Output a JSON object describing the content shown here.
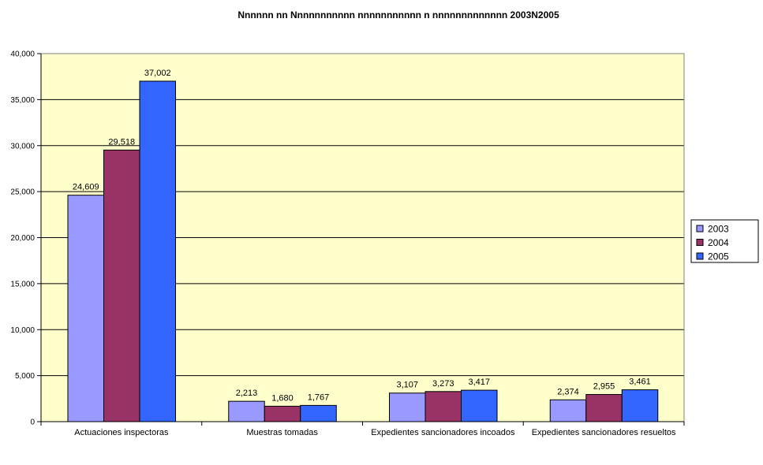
{
  "chart_data": {
    "type": "bar",
    "title": "Nnnnnn nn Nnnnnnnnnnn nnnnnnnnnnn n nnnnnnnnnnnnn 2003N2005",
    "xlabel": "",
    "ylabel": "",
    "categories": [
      "Actuaciones inspectoras",
      "Muestras tomadas",
      "Expedientes sancionadores incoados",
      "Expedientes sancionadores resueltos"
    ],
    "series": [
      {
        "name": "2003",
        "color": "#9999ff",
        "values": [
          24609,
          2213,
          3107,
          2374
        ],
        "labels": [
          "24,609",
          "2,213",
          "3,107",
          "2,374"
        ]
      },
      {
        "name": "2004",
        "color": "#993366",
        "values": [
          29518,
          1680,
          3273,
          2955
        ],
        "labels": [
          "29,518",
          "1,680",
          "3,273",
          "2,955"
        ]
      },
      {
        "name": "2005",
        "color": "#3366ff",
        "values": [
          37002,
          1767,
          3417,
          3461
        ],
        "labels": [
          "37,002",
          "1,767",
          "3,417",
          "3,461"
        ]
      }
    ],
    "ylim": [
      0,
      40000
    ],
    "yticks": [
      0,
      5000,
      10000,
      15000,
      20000,
      25000,
      30000,
      35000,
      40000
    ],
    "ytick_labels": [
      "0",
      "5,000",
      "10,000",
      "15,000",
      "20,000",
      "25,000",
      "30,000",
      "35,000",
      "40,000"
    ],
    "grid": true,
    "legend": "right",
    "plot_background": "#ffffcc"
  }
}
